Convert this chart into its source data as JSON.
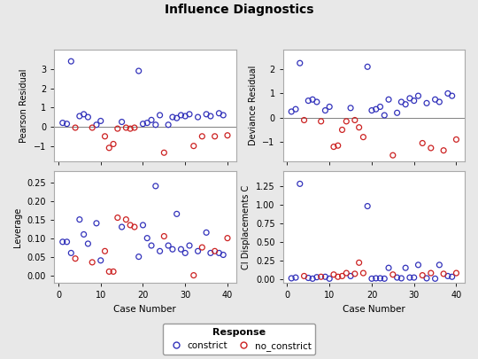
{
  "title": "Influence Diagnostics",
  "blue_color": "#3333bb",
  "red_color": "#cc2222",
  "bg_color": "#e8e8e8",
  "plot_bg": "#ffffff",
  "legend_label_blue": "constrict",
  "legend_label_red": "no_constrict",
  "legend_title": "Response",
  "pearson_blue_x": [
    1,
    2,
    3,
    5,
    6,
    7,
    9,
    10,
    15,
    19,
    20,
    21,
    22,
    23,
    24,
    26,
    27,
    28,
    29,
    30,
    31,
    33,
    35,
    36,
    38,
    39
  ],
  "pearson_blue_y": [
    0.2,
    0.15,
    3.4,
    0.55,
    0.65,
    0.5,
    0.1,
    0.3,
    0.25,
    2.9,
    0.15,
    0.2,
    0.35,
    0.1,
    0.6,
    0.1,
    0.5,
    0.45,
    0.6,
    0.55,
    0.65,
    0.5,
    0.65,
    0.55,
    0.7,
    0.6
  ],
  "pearson_red_x": [
    4,
    8,
    11,
    12,
    13,
    14,
    16,
    17,
    18,
    25,
    32,
    34,
    37,
    40
  ],
  "pearson_red_y": [
    -0.05,
    -0.05,
    -0.5,
    -1.1,
    -0.9,
    -0.1,
    -0.05,
    -0.1,
    -0.05,
    -1.35,
    -1.0,
    -0.5,
    -0.5,
    -0.45
  ],
  "deviance_blue_x": [
    1,
    2,
    3,
    5,
    6,
    7,
    9,
    10,
    15,
    19,
    20,
    21,
    22,
    23,
    24,
    26,
    27,
    28,
    29,
    30,
    31,
    33,
    35,
    36,
    38,
    39
  ],
  "deviance_blue_y": [
    0.25,
    0.35,
    2.25,
    0.7,
    0.75,
    0.65,
    0.3,
    0.45,
    0.4,
    2.1,
    0.3,
    0.35,
    0.45,
    0.1,
    0.75,
    0.2,
    0.65,
    0.55,
    0.8,
    0.7,
    0.9,
    0.6,
    0.75,
    0.65,
    1.0,
    0.9
  ],
  "deviance_red_x": [
    4,
    8,
    11,
    12,
    13,
    14,
    16,
    17,
    18,
    25,
    32,
    34,
    37,
    40
  ],
  "deviance_red_y": [
    -0.1,
    -0.15,
    -1.2,
    -1.15,
    -0.5,
    -0.15,
    -0.1,
    -0.4,
    -0.8,
    -1.55,
    -1.05,
    -1.25,
    -1.35,
    -0.9
  ],
  "leverage_blue_x": [
    1,
    2,
    3,
    5,
    6,
    7,
    9,
    10,
    15,
    19,
    20,
    21,
    22,
    23,
    24,
    26,
    27,
    28,
    29,
    30,
    31,
    33,
    35,
    36,
    38,
    39
  ],
  "leverage_blue_y": [
    0.09,
    0.09,
    0.06,
    0.15,
    0.11,
    0.085,
    0.14,
    0.04,
    0.13,
    0.05,
    0.135,
    0.1,
    0.08,
    0.24,
    0.065,
    0.08,
    0.07,
    0.165,
    0.07,
    0.06,
    0.08,
    0.065,
    0.115,
    0.06,
    0.06,
    0.055
  ],
  "leverage_red_x": [
    4,
    8,
    11,
    12,
    13,
    14,
    16,
    17,
    18,
    25,
    32,
    34,
    37,
    40
  ],
  "leverage_red_y": [
    0.045,
    0.035,
    0.065,
    0.01,
    0.01,
    0.155,
    0.15,
    0.135,
    0.13,
    0.105,
    0.0,
    0.075,
    0.065,
    0.1
  ],
  "ci_blue_x": [
    1,
    2,
    3,
    5,
    6,
    7,
    9,
    10,
    15,
    19,
    20,
    21,
    22,
    23,
    24,
    26,
    27,
    28,
    29,
    30,
    31,
    33,
    35,
    36,
    38,
    39
  ],
  "ci_blue_y": [
    0.01,
    0.02,
    1.28,
    0.015,
    0.005,
    0.025,
    0.03,
    0.005,
    0.04,
    0.98,
    0.005,
    0.01,
    0.01,
    0.005,
    0.15,
    0.02,
    0.01,
    0.15,
    0.02,
    0.02,
    0.19,
    0.01,
    0.005,
    0.19,
    0.04,
    0.03
  ],
  "ci_red_x": [
    4,
    8,
    11,
    12,
    13,
    14,
    16,
    17,
    18,
    25,
    32,
    34,
    37,
    40
  ],
  "ci_red_y": [
    0.04,
    0.03,
    0.06,
    0.03,
    0.04,
    0.08,
    0.07,
    0.22,
    0.08,
    0.06,
    0.05,
    0.08,
    0.07,
    0.08
  ],
  "ylabels": [
    "Pearson Residual",
    "Deviance Residual",
    "Leverage",
    "CI Displacements C"
  ],
  "xlabel": "Case Number",
  "xlim": [
    -1,
    42
  ],
  "xticks": [
    0,
    10,
    20,
    30,
    40
  ],
  "pearson_ylim": [
    -1.8,
    4.0
  ],
  "pearson_yticks": [
    -1,
    0,
    1,
    2,
    3
  ],
  "deviance_ylim": [
    -1.8,
    2.8
  ],
  "deviance_yticks": [
    -1,
    0,
    1,
    2
  ],
  "leverage_ylim": [
    -0.02,
    0.28
  ],
  "leverage_yticks": [
    0.0,
    0.05,
    0.1,
    0.15,
    0.2,
    0.25
  ],
  "ci_ylim": [
    -0.05,
    1.45
  ],
  "ci_yticks": [
    0.0,
    0.25,
    0.5,
    0.75,
    1.0,
    1.25
  ]
}
